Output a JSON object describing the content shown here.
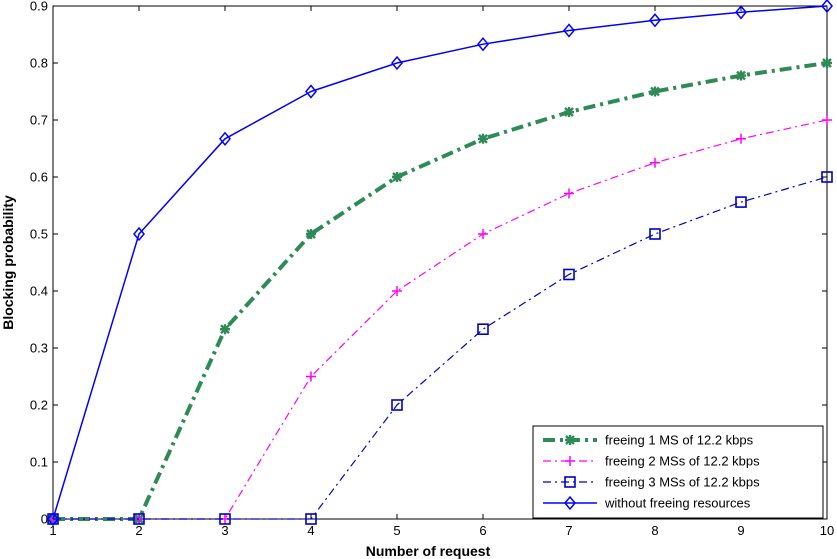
{
  "chart_data": {
    "type": "line",
    "title": "",
    "xlabel": "Number of request",
    "ylabel": "Blocking probability",
    "xlim": [
      1,
      10
    ],
    "ylim": [
      0,
      0.9
    ],
    "xticks": [
      "1",
      "2",
      "3",
      "4",
      "5",
      "6",
      "7",
      "8",
      "9",
      "10"
    ],
    "yticks": [
      "0",
      "0.1",
      "0.2",
      "0.3",
      "0.4",
      "0.5",
      "0.6",
      "0.7",
      "0.8",
      "0.9"
    ],
    "grid": false,
    "legend_position": "bottom-right",
    "x": [
      1,
      2,
      3,
      4,
      5,
      6,
      7,
      8,
      9,
      10
    ],
    "series": [
      {
        "name": "freeing 1 MS of 12.2 kbps",
        "values": [
          0,
          0,
          0.333,
          0.5,
          0.6,
          0.667,
          0.714,
          0.75,
          0.778,
          0.8
        ],
        "color": "#2e8b57",
        "style": "dashdot-thick",
        "marker": "star"
      },
      {
        "name": "freeing 2 MSs of 12.2 kbps",
        "values": [
          0,
          0,
          0,
          0.25,
          0.4,
          0.5,
          0.571,
          0.625,
          0.667,
          0.7
        ],
        "color": "#ff00ff",
        "style": "dashdot",
        "marker": "plus"
      },
      {
        "name": "freeing 3 MSs of 12.2 kbps",
        "values": [
          0,
          0,
          0,
          0,
          0.2,
          0.333,
          0.429,
          0.5,
          0.556,
          0.6
        ],
        "color": "#0000cc",
        "style": "dashdot",
        "marker": "square"
      },
      {
        "name": "without freeing resources",
        "values": [
          0,
          0.5,
          0.667,
          0.75,
          0.8,
          0.833,
          0.857,
          0.875,
          0.889,
          0.9
        ],
        "color": "#0000ff",
        "style": "solid",
        "marker": "diamond"
      }
    ]
  }
}
